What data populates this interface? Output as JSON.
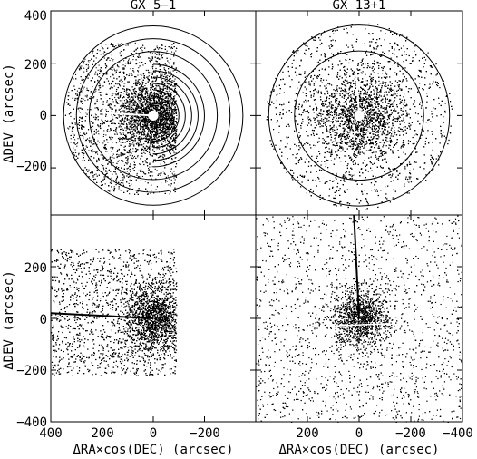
{
  "chart_data": [
    {
      "type": "scatter",
      "panel": "top-left",
      "title": "GX 5−1",
      "xlabel": "",
      "ylabel": "ΔDEV (arcsec)",
      "xlim": [
        400,
        -400
      ],
      "ylim": [
        -380,
        400
      ],
      "x_reversed": true,
      "x_ticks": [],
      "y_ticks": [
        400,
        200,
        0,
        -200
      ],
      "y_tick_labels": [
        "400",
        "200",
        "0",
        "−200"
      ],
      "grid": false,
      "source_center": [
        0,
        0
      ],
      "source_exclusion_radius": 20,
      "overlays": {
        "type": "concentric_circles_right_half",
        "radii": [
          50,
          75,
          100,
          125,
          150,
          175,
          200,
          250,
          300,
          350
        ]
      },
      "streak": {
        "from": [
          400,
          20
        ],
        "to": [
          0,
          0
        ],
        "note": "bright readout streak"
      },
      "events": {
        "distribution": "dense core plus diffuse halo",
        "extent_x": [
          380,
          -90
        ],
        "extent_y": [
          -300,
          280
        ]
      }
    },
    {
      "type": "scatter",
      "panel": "top-right",
      "title": "GX 13+1",
      "xlabel": "",
      "ylabel": "",
      "xlim": [
        400,
        -400
      ],
      "ylim": [
        -380,
        400
      ],
      "x_reversed": true,
      "x_ticks": [],
      "y_ticks": [],
      "grid": false,
      "source_center": [
        0,
        0
      ],
      "source_exclusion_radius": 20,
      "overlays": {
        "type": "concentric_circles",
        "radii": [
          250,
          350
        ]
      },
      "streak": {
        "from": [
          0,
          0
        ],
        "to": [
          20,
          300
        ],
        "note": "bright readout streak"
      },
      "events": {
        "distribution": "dense core plus diffuse halo filling disc",
        "extent_radius": 360
      }
    },
    {
      "type": "scatter",
      "panel": "bottom-left",
      "title": "",
      "xlabel": "ΔRA×cos(DEC) (arcsec)",
      "ylabel": "ΔDEV (arcsec)",
      "xlim": [
        400,
        -400
      ],
      "ylim": [
        -400,
        400
      ],
      "x_reversed": true,
      "x_ticks": [
        400,
        200,
        0,
        -200
      ],
      "x_tick_labels": [
        "400",
        "200",
        "0",
        "−200"
      ],
      "y_ticks": [
        200,
        0,
        -200,
        -400
      ],
      "y_tick_labels": [
        "200",
        "0",
        "−200",
        "−400"
      ],
      "grid": false,
      "streak": {
        "from": [
          400,
          20
        ],
        "to": [
          0,
          0
        ]
      },
      "events": {
        "distribution": "dense core plus uniform background in box",
        "extent_x": [
          400,
          -90
        ],
        "extent_y": [
          -220,
          270
        ]
      }
    },
    {
      "type": "scatter",
      "panel": "bottom-right",
      "title": "",
      "xlabel": "ΔRA×cos(DEC) (arcsec)",
      "ylabel": "",
      "xlim": [
        400,
        -400
      ],
      "ylim": [
        -400,
        400
      ],
      "x_reversed": true,
      "x_ticks": [
        200,
        0,
        -200,
        -400
      ],
      "x_tick_labels": [
        "200",
        "0",
        "−200",
        "−400"
      ],
      "y_ticks": [],
      "grid": false,
      "streak": {
        "from": [
          0,
          0
        ],
        "to": [
          20,
          400
        ]
      },
      "events": {
        "distribution": "dense core plus uniform background over full panel",
        "extent_x": [
          400,
          -400
        ],
        "extent_y": [
          -400,
          400
        ]
      }
    }
  ],
  "colors": {
    "ink": "#000000",
    "paper": "#ffffff"
  }
}
